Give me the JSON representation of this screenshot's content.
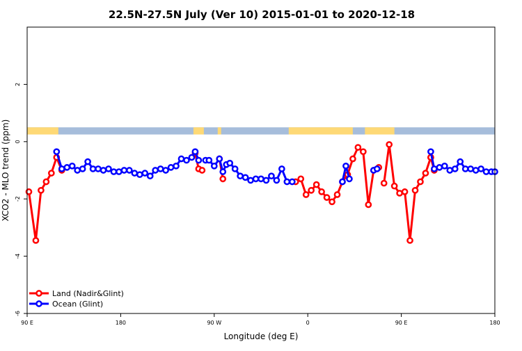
{
  "chart_data": {
    "type": "line",
    "title": "22.5N-27.5N July (Ver 10)   2015-01-01 to 2020-12-18",
    "xlabel": "Longitude (deg E)",
    "ylabel": "XCO2 - MLO trend (ppm)",
    "xlim": [
      -90,
      180
    ],
    "ylim": [
      -6,
      4
    ],
    "x_ticks": [
      {
        "value": -90,
        "label": "90 E"
      },
      {
        "value": -36,
        "label": "180"
      },
      {
        "value": 18,
        "label": "90 W"
      },
      {
        "value": 72,
        "label": "0"
      },
      {
        "value": 126,
        "label": "90 E"
      },
      {
        "value": 180,
        "label": "180"
      }
    ],
    "y_ticks": [
      -6,
      -4,
      -2,
      0,
      2
    ],
    "grid": false,
    "legend_position": "bottom-left",
    "land_mask": {
      "y_range": [
        0.25,
        0.5
      ],
      "land_color": "#fed976",
      "ocean_color": "#a6bddb",
      "land_segments": [
        [
          -90,
          -72
        ],
        [
          6,
          12
        ],
        [
          20,
          22
        ],
        [
          61,
          98
        ],
        [
          105,
          122
        ]
      ]
    },
    "series": [
      {
        "name": "Land (Nadir&Glint)",
        "color": "#ff0000",
        "segments": [
          {
            "x": [
              -89,
              -85,
              -82,
              -79,
              -76,
              -73,
              -70
            ],
            "y": [
              -1.75,
              -3.45,
              -1.7,
              -1.4,
              -1.1,
              -0.55,
              -1.0
            ]
          },
          {
            "x": [
              7,
              9,
              11
            ],
            "y": [
              -0.4,
              -0.95,
              -1.0
            ]
          },
          {
            "x": [
              21,
              23
            ],
            "y": [
              -0.6,
              -1.3
            ]
          },
          {
            "x": [
              65,
              68,
              71,
              74,
              77,
              80,
              83,
              86,
              89,
              92,
              95,
              98,
              101,
              104,
              107,
              110,
              113
            ],
            "y": [
              -1.4,
              -1.3,
              -1.85,
              -1.7,
              -1.5,
              -1.75,
              -1.95,
              -2.1,
              -1.85,
              -1.4,
              -1.15,
              -0.6,
              -0.2,
              -0.35,
              -2.2,
              -1.0,
              -0.9
            ]
          },
          {
            "x": [
              116,
              119,
              122,
              125,
              128,
              131,
              134,
              137,
              140,
              143
            ],
            "y": [
              -1.45,
              -0.1,
              -1.55,
              -1.8,
              -1.75,
              -3.45,
              -1.7,
              -1.4,
              -1.1,
              -0.55
            ]
          },
          {
            "x": [
              143,
              145
            ],
            "y": [
              -0.55,
              -1.0
            ]
          }
        ]
      },
      {
        "name": "Ocean (Glint)",
        "color": "#0000ff",
        "segments": [
          {
            "x": [
              -73,
              -70,
              -67,
              -64,
              -61,
              -58,
              -55,
              -52,
              -49,
              -46,
              -43,
              -40,
              -37,
              -34,
              -31,
              -28,
              -25,
              -22,
              -19,
              -16,
              -13,
              -10,
              -7,
              -4,
              -1,
              2,
              5,
              7,
              9
            ],
            "y": [
              -0.35,
              -0.95,
              -0.9,
              -0.85,
              -1.0,
              -0.95,
              -0.7,
              -0.95,
              -0.95,
              -1.0,
              -0.95,
              -1.05,
              -1.05,
              -1.0,
              -1.0,
              -1.1,
              -1.15,
              -1.1,
              -1.2,
              -1.0,
              -0.95,
              -1.0,
              -0.9,
              -0.85,
              -0.6,
              -0.65,
              -0.55,
              -0.35,
              -0.65
            ]
          },
          {
            "x": [
              13,
              15,
              18,
              21,
              23,
              25,
              27,
              30,
              33,
              36,
              39,
              42,
              45,
              48,
              51,
              54,
              57,
              60,
              63
            ],
            "y": [
              -0.65,
              -0.65,
              -0.85,
              -0.6,
              -1.05,
              -0.8,
              -0.75,
              -0.95,
              -1.2,
              -1.25,
              -1.35,
              -1.3,
              -1.3,
              -1.35,
              -1.2,
              -1.35,
              -0.95,
              -1.4,
              -1.4
            ]
          },
          {
            "x": [
              92,
              94,
              96
            ],
            "y": [
              -1.4,
              -0.85,
              -1.3
            ]
          },
          {
            "x": [
              110,
              112
            ],
            "y": [
              -1.0,
              -0.95
            ]
          },
          {
            "x": [
              143,
              145,
              148,
              151,
              154,
              157,
              160,
              163,
              166,
              169,
              172,
              175,
              178,
              180
            ],
            "y": [
              -0.35,
              -0.95,
              -0.9,
              -0.85,
              -1.0,
              -0.95,
              -0.7,
              -0.95,
              -0.95,
              -1.0,
              -0.95,
              -1.05,
              -1.05,
              -1.05
            ]
          }
        ]
      }
    ]
  }
}
